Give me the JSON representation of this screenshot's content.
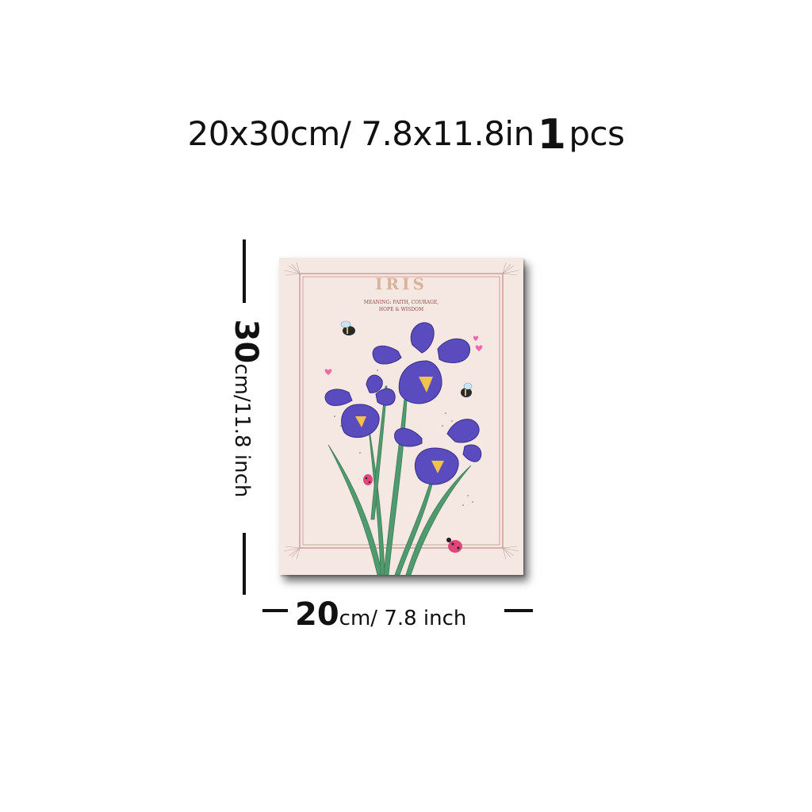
{
  "header": {
    "size_text": "20x30cm/ 7.8x11.8in",
    "quantity": "1",
    "unit": "pcs"
  },
  "vertical_dimension": {
    "value": "30",
    "unit_text": "cm/11.8 inch"
  },
  "horizontal_dimension": {
    "value": "20",
    "unit_text": "cm/ 7.8 inch"
  },
  "poster": {
    "title": "IRIS",
    "subtitle_line1": "MEANING: FAITH, COURAGE,",
    "subtitle_line2": "HOPE & WISDOM",
    "colors": {
      "background": "#f5e8e2",
      "frame": "#b07b78",
      "title": "#d9b29a",
      "petal": "#5a4bbf",
      "petal_dark": "#3a2f8a",
      "stem": "#4f9a6e",
      "heart": "#f06aa8",
      "ladybug": "#e0457b"
    }
  }
}
